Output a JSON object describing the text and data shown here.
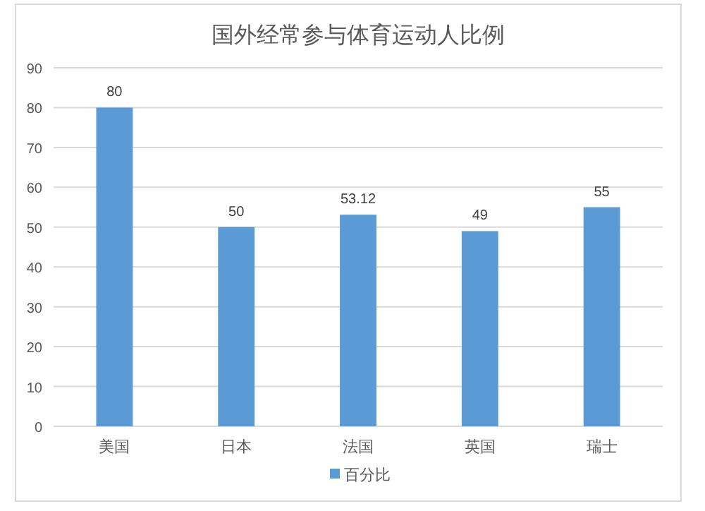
{
  "chart_data": {
    "type": "bar",
    "title": "国外经常参与体育运动人比例",
    "categories": [
      "美国",
      "日本",
      "法国",
      "英国",
      "瑞士"
    ],
    "series": [
      {
        "name": "百分比",
        "color": "#5b9bd5",
        "values": [
          80,
          50,
          53.12,
          49,
          55
        ]
      }
    ],
    "ylim": [
      0,
      90
    ],
    "yticks": [
      0,
      10,
      20,
      30,
      40,
      50,
      60,
      70,
      80,
      90
    ],
    "grid": "y",
    "legend": "bottom",
    "data_labels": true
  }
}
